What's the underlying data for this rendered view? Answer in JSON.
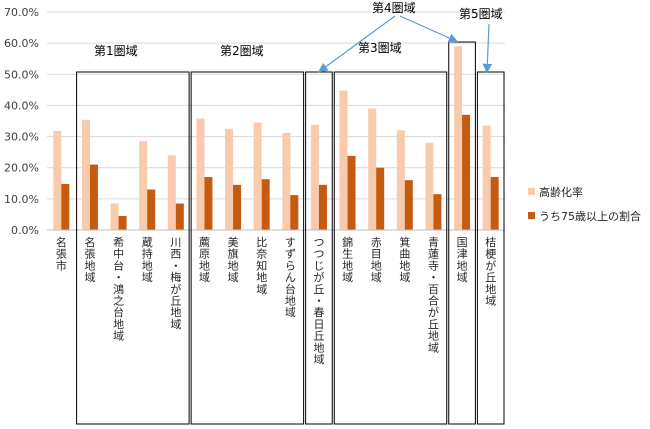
{
  "chart_data": {
    "type": "bar",
    "categories": [
      "名張市",
      "名張地域",
      "希中台・鴻之台地域",
      "蔵持地域",
      "川西・梅が丘地域",
      "薦原地域",
      "美旗地域",
      "比奈知地域",
      "すずらん台地域",
      "つつじが丘・春日丘地域",
      "錦生地域",
      "赤目地域",
      "箕曲地域",
      "青蓮寺・百合が丘地域",
      "国津地域",
      "桔梗が丘地域"
    ],
    "series": [
      {
        "name": "高齢化率",
        "color": "#f8cbad",
        "values": [
          31.8,
          35.4,
          8.5,
          28.5,
          24.0,
          35.8,
          32.5,
          34.5,
          31.2,
          33.8,
          44.8,
          39.0,
          32.0,
          28.0,
          59.0,
          33.5
        ]
      },
      {
        "name": "うち75歳以上の割合",
        "color": "#c55a11",
        "values": [
          14.8,
          21.0,
          4.5,
          13.0,
          8.5,
          17.0,
          14.5,
          16.3,
          11.2,
          14.5,
          23.8,
          20.0,
          16.0,
          11.5,
          37.0,
          17.0
        ]
      }
    ],
    "ylim": [
      0,
      70
    ],
    "yticks": [
      "0.0%",
      "10.0%",
      "20.0%",
      "30.0%",
      "40.0%",
      "50.0%",
      "60.0%",
      "70.0%"
    ],
    "legend_position": "right",
    "grid": true,
    "regions": [
      {
        "label": "第1圏域",
        "start": 1,
        "end": 4
      },
      {
        "label": "第2圏域",
        "start": 5,
        "end": 8
      },
      {
        "label": "第3圏域",
        "start": 10,
        "end": 13
      },
      {
        "label": "第4圏域",
        "start": 9,
        "end": 9
      },
      {
        "label": "第4圏域",
        "start": 14,
        "end": 14
      },
      {
        "label": "第5圏域",
        "start": 15,
        "end": 15
      }
    ],
    "region_labels": {
      "r1": "第1圏域",
      "r2": "第2圏域",
      "r3": "第3圏域",
      "r4": "第4圏域",
      "r5": "第5圏域"
    }
  }
}
